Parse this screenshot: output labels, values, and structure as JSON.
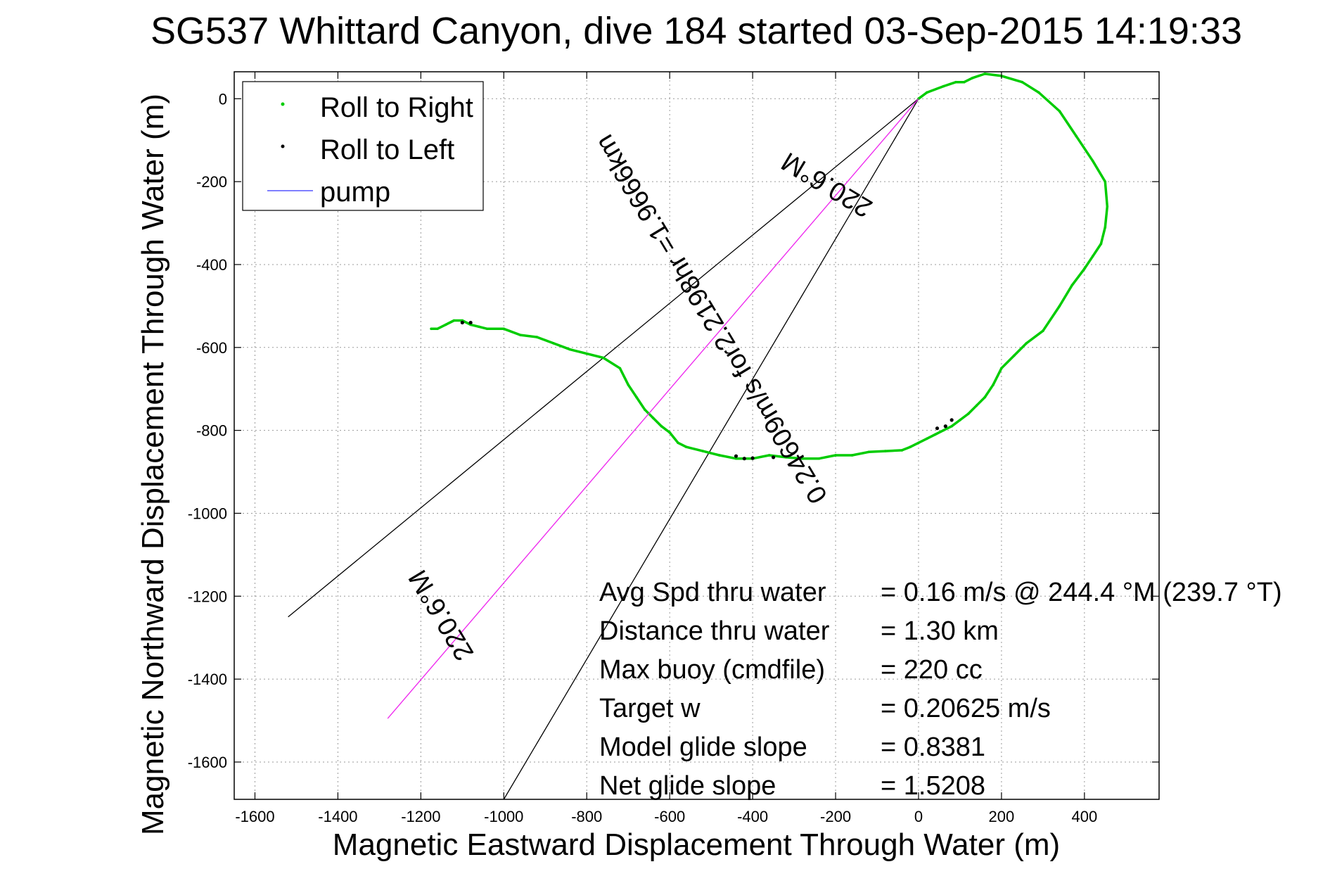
{
  "chart_data": {
    "type": "line",
    "title": "SG537 Whittard Canyon, dive 184 started 03-Sep-2015 14:19:33",
    "xlabel": "Magnetic Eastward Displacement Through Water (m)",
    "ylabel": "Magnetic Northward Displacement Through Water (m)",
    "xlim": [
      -1650,
      580
    ],
    "ylim": [
      -1690,
      65
    ],
    "xticks": [
      -1600,
      -1400,
      -1200,
      -1000,
      -800,
      -600,
      -400,
      -200,
      0,
      200,
      400
    ],
    "yticks": [
      0,
      -200,
      -400,
      -600,
      -800,
      -1000,
      -1200,
      -1400,
      -1600
    ],
    "grid": true,
    "legend_position": "top-left",
    "legend": [
      {
        "label": "Roll to Right",
        "color": "#00cc00",
        "marker": "dot"
      },
      {
        "label": "Roll to Left",
        "color": "#000000",
        "marker": "dot"
      },
      {
        "label": "pump",
        "color": "#5555ff",
        "marker": "line"
      }
    ],
    "series": [
      {
        "name": "Roll to Right",
        "color": "#00cc00",
        "x": [
          0,
          20,
          60,
          90,
          110,
          130,
          160,
          200,
          250,
          290,
          340,
          380,
          420,
          450,
          455,
          450,
          440,
          420,
          400,
          370,
          340,
          300,
          260,
          230,
          200,
          180,
          160,
          140,
          120,
          100,
          80,
          60,
          40,
          20,
          0,
          -20,
          -40,
          -80,
          -120,
          -160,
          -200,
          -240,
          -280,
          -320,
          -360,
          -400,
          -440,
          -480,
          -520,
          -560,
          -580,
          -600,
          -620,
          -640,
          -660,
          -680,
          -700,
          -720,
          -760,
          -800,
          -840,
          -880,
          -920,
          -960,
          -1000,
          -1040,
          -1060,
          -1080,
          -1100,
          -1120,
          -1140,
          -1160,
          -1175
        ],
        "y": [
          0,
          15,
          30,
          40,
          40,
          50,
          60,
          55,
          40,
          15,
          -30,
          -90,
          -150,
          -200,
          -260,
          -310,
          -350,
          -380,
          -410,
          -450,
          -500,
          -560,
          -590,
          -620,
          -650,
          -690,
          -720,
          -740,
          -760,
          -775,
          -790,
          -800,
          -810,
          -820,
          -830,
          -840,
          -848,
          -850,
          -852,
          -860,
          -860,
          -868,
          -868,
          -865,
          -860,
          -868,
          -868,
          -860,
          -850,
          -840,
          -830,
          -805,
          -790,
          -770,
          -750,
          -720,
          -690,
          -650,
          -625,
          -615,
          -605,
          -590,
          -575,
          -570,
          -555,
          -555,
          -550,
          -545,
          -535,
          -535,
          -545,
          -555,
          -555
        ]
      },
      {
        "name": "Roll to Left",
        "color": "#000000",
        "x": [
          45,
          65,
          80,
          -440,
          -420,
          -400,
          -350,
          -1080,
          -1100
        ],
        "y": [
          -795,
          -790,
          -775,
          -862,
          -868,
          -867,
          -865,
          -540,
          -540
        ]
      },
      {
        "name": "pump",
        "color": "#5555ff",
        "x": [
          -1280,
          0
        ],
        "y": [
          -1495,
          0
        ]
      }
    ],
    "reference_lines": [
      {
        "x": [
          0,
          -1520
        ],
        "y": [
          0,
          -1250
        ],
        "color": "#000000"
      },
      {
        "x": [
          0,
          -1000
        ],
        "y": [
          0,
          -1690
        ],
        "color": "#000000"
      }
    ],
    "annotations": [
      {
        "text": "220.6°M"
      },
      {
        "text": "0.24609m/s for2.2198hr =1.9666km"
      },
      {
        "text": "220.6°M"
      }
    ],
    "stats": [
      {
        "label": "Avg Spd thru water",
        "value": "=  0.16 m/s @ 244.4 °M (239.7 °T)"
      },
      {
        "label": "Distance thru water",
        "value": "=  1.30 km"
      },
      {
        "label": "Max buoy (cmdfile)",
        "value": "= 220 cc"
      },
      {
        "label": "Target w",
        "value": "= 0.20625 m/s"
      },
      {
        "label": "Model glide slope",
        "value": "= 0.8381"
      },
      {
        "label": "Net glide slope",
        "value": "= 1.5208"
      }
    ]
  }
}
